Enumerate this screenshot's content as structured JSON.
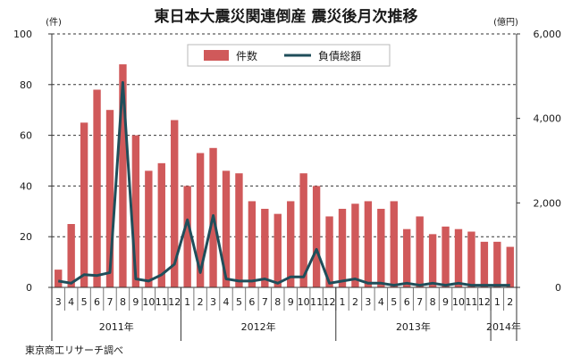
{
  "chart_data": {
    "type": "bar+line",
    "title": "東日本大震災関連倒産 震災後月次推移",
    "left_axis": {
      "unit": "(件)",
      "ylim": [
        0,
        100
      ],
      "ticks": [
        "0",
        "20",
        "40",
        "60",
        "80",
        "100"
      ]
    },
    "right_axis": {
      "unit": "(億円)",
      "ylim": [
        0,
        6000
      ],
      "ticks": [
        "0",
        "2,000",
        "4,000",
        "6,000"
      ]
    },
    "categories": [
      "3",
      "4",
      "5",
      "6",
      "7",
      "8",
      "9",
      "10",
      "11",
      "12",
      "1",
      "2",
      "3",
      "4",
      "5",
      "6",
      "7",
      "8",
      "9",
      "10",
      "11",
      "12",
      "1",
      "2",
      "3",
      "4",
      "5",
      "6",
      "7",
      "8",
      "9",
      "10",
      "11",
      "12",
      "1",
      "2"
    ],
    "year_labels": [
      "2011年",
      "2012年",
      "2013年",
      "2014年"
    ],
    "series": [
      {
        "name": "件数",
        "kind": "bar",
        "axis": "left",
        "color": "#d0595a",
        "values": [
          7,
          25,
          65,
          78,
          70,
          88,
          60,
          46,
          49,
          66,
          40,
          53,
          55,
          46,
          45,
          34,
          31,
          29,
          34,
          45,
          40,
          28,
          31,
          33,
          34,
          31,
          34,
          23,
          28,
          21,
          24,
          23,
          22,
          18,
          18,
          16
        ]
      },
      {
        "name": "負債総額",
        "kind": "line",
        "axis": "right",
        "color": "#1f4e5a",
        "values": [
          150,
          100,
          300,
          280,
          350,
          4850,
          200,
          150,
          300,
          550,
          1600,
          350,
          1700,
          200,
          150,
          150,
          200,
          100,
          250,
          250,
          900,
          100,
          150,
          200,
          100,
          100,
          50,
          100,
          50,
          100,
          50,
          100,
          50,
          50,
          50,
          50
        ]
      }
    ],
    "legend": {
      "position": "top-center"
    },
    "source": "東京商工リサーチ調べ"
  }
}
